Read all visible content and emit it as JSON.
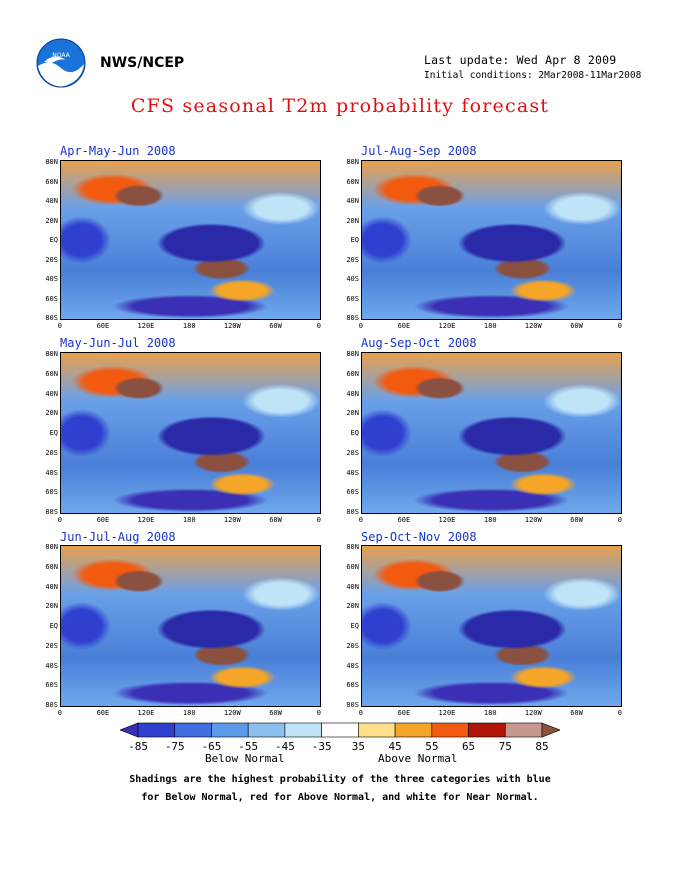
{
  "header": {
    "org": "NWS/NCEP",
    "last_update": "Last update: Wed Apr 8 2009",
    "initial_conditions": "Initial conditions: 2Mar2008-11Mar2008",
    "title": "CFS seasonal T2m probability forecast",
    "logo_icon": "noaa-logo-icon"
  },
  "panels": [
    {
      "title": "Apr-May-Jun 2008"
    },
    {
      "title": "Jul-Aug-Sep 2008"
    },
    {
      "title": "May-Jun-Jul 2008"
    },
    {
      "title": "Aug-Sep-Oct 2008"
    },
    {
      "title": "Jun-Jul-Aug 2008"
    },
    {
      "title": "Sep-Oct-Nov 2008"
    }
  ],
  "lat_labels": [
    "80N",
    "60N",
    "40N",
    "20N",
    "EQ",
    "20S",
    "40S",
    "60S",
    "80S"
  ],
  "lon_labels": [
    "0",
    "60E",
    "120E",
    "180",
    "120W",
    "60W",
    "0"
  ],
  "colorbar": {
    "labels": [
      "-85",
      "-75",
      "-65",
      "-55",
      "-45",
      "-35",
      "35",
      "45",
      "55",
      "65",
      "75",
      "85"
    ],
    "colors": [
      "#3a2fb5",
      "#2f3fd0",
      "#3f6ee0",
      "#5a9ae8",
      "#8cc0f0",
      "#bfe4f8",
      "#ffffff",
      "#ffe08a",
      "#f5a528",
      "#f25a10",
      "#b01508",
      "#c69890",
      "#8a5040"
    ],
    "below_label": "Below Normal",
    "above_label": "Above Normal"
  },
  "footnote": {
    "line1": "Shadings are the highest probability of the three categories with blue",
    "line2": "for Below Normal, red for Above Normal, and white for Near Normal."
  }
}
